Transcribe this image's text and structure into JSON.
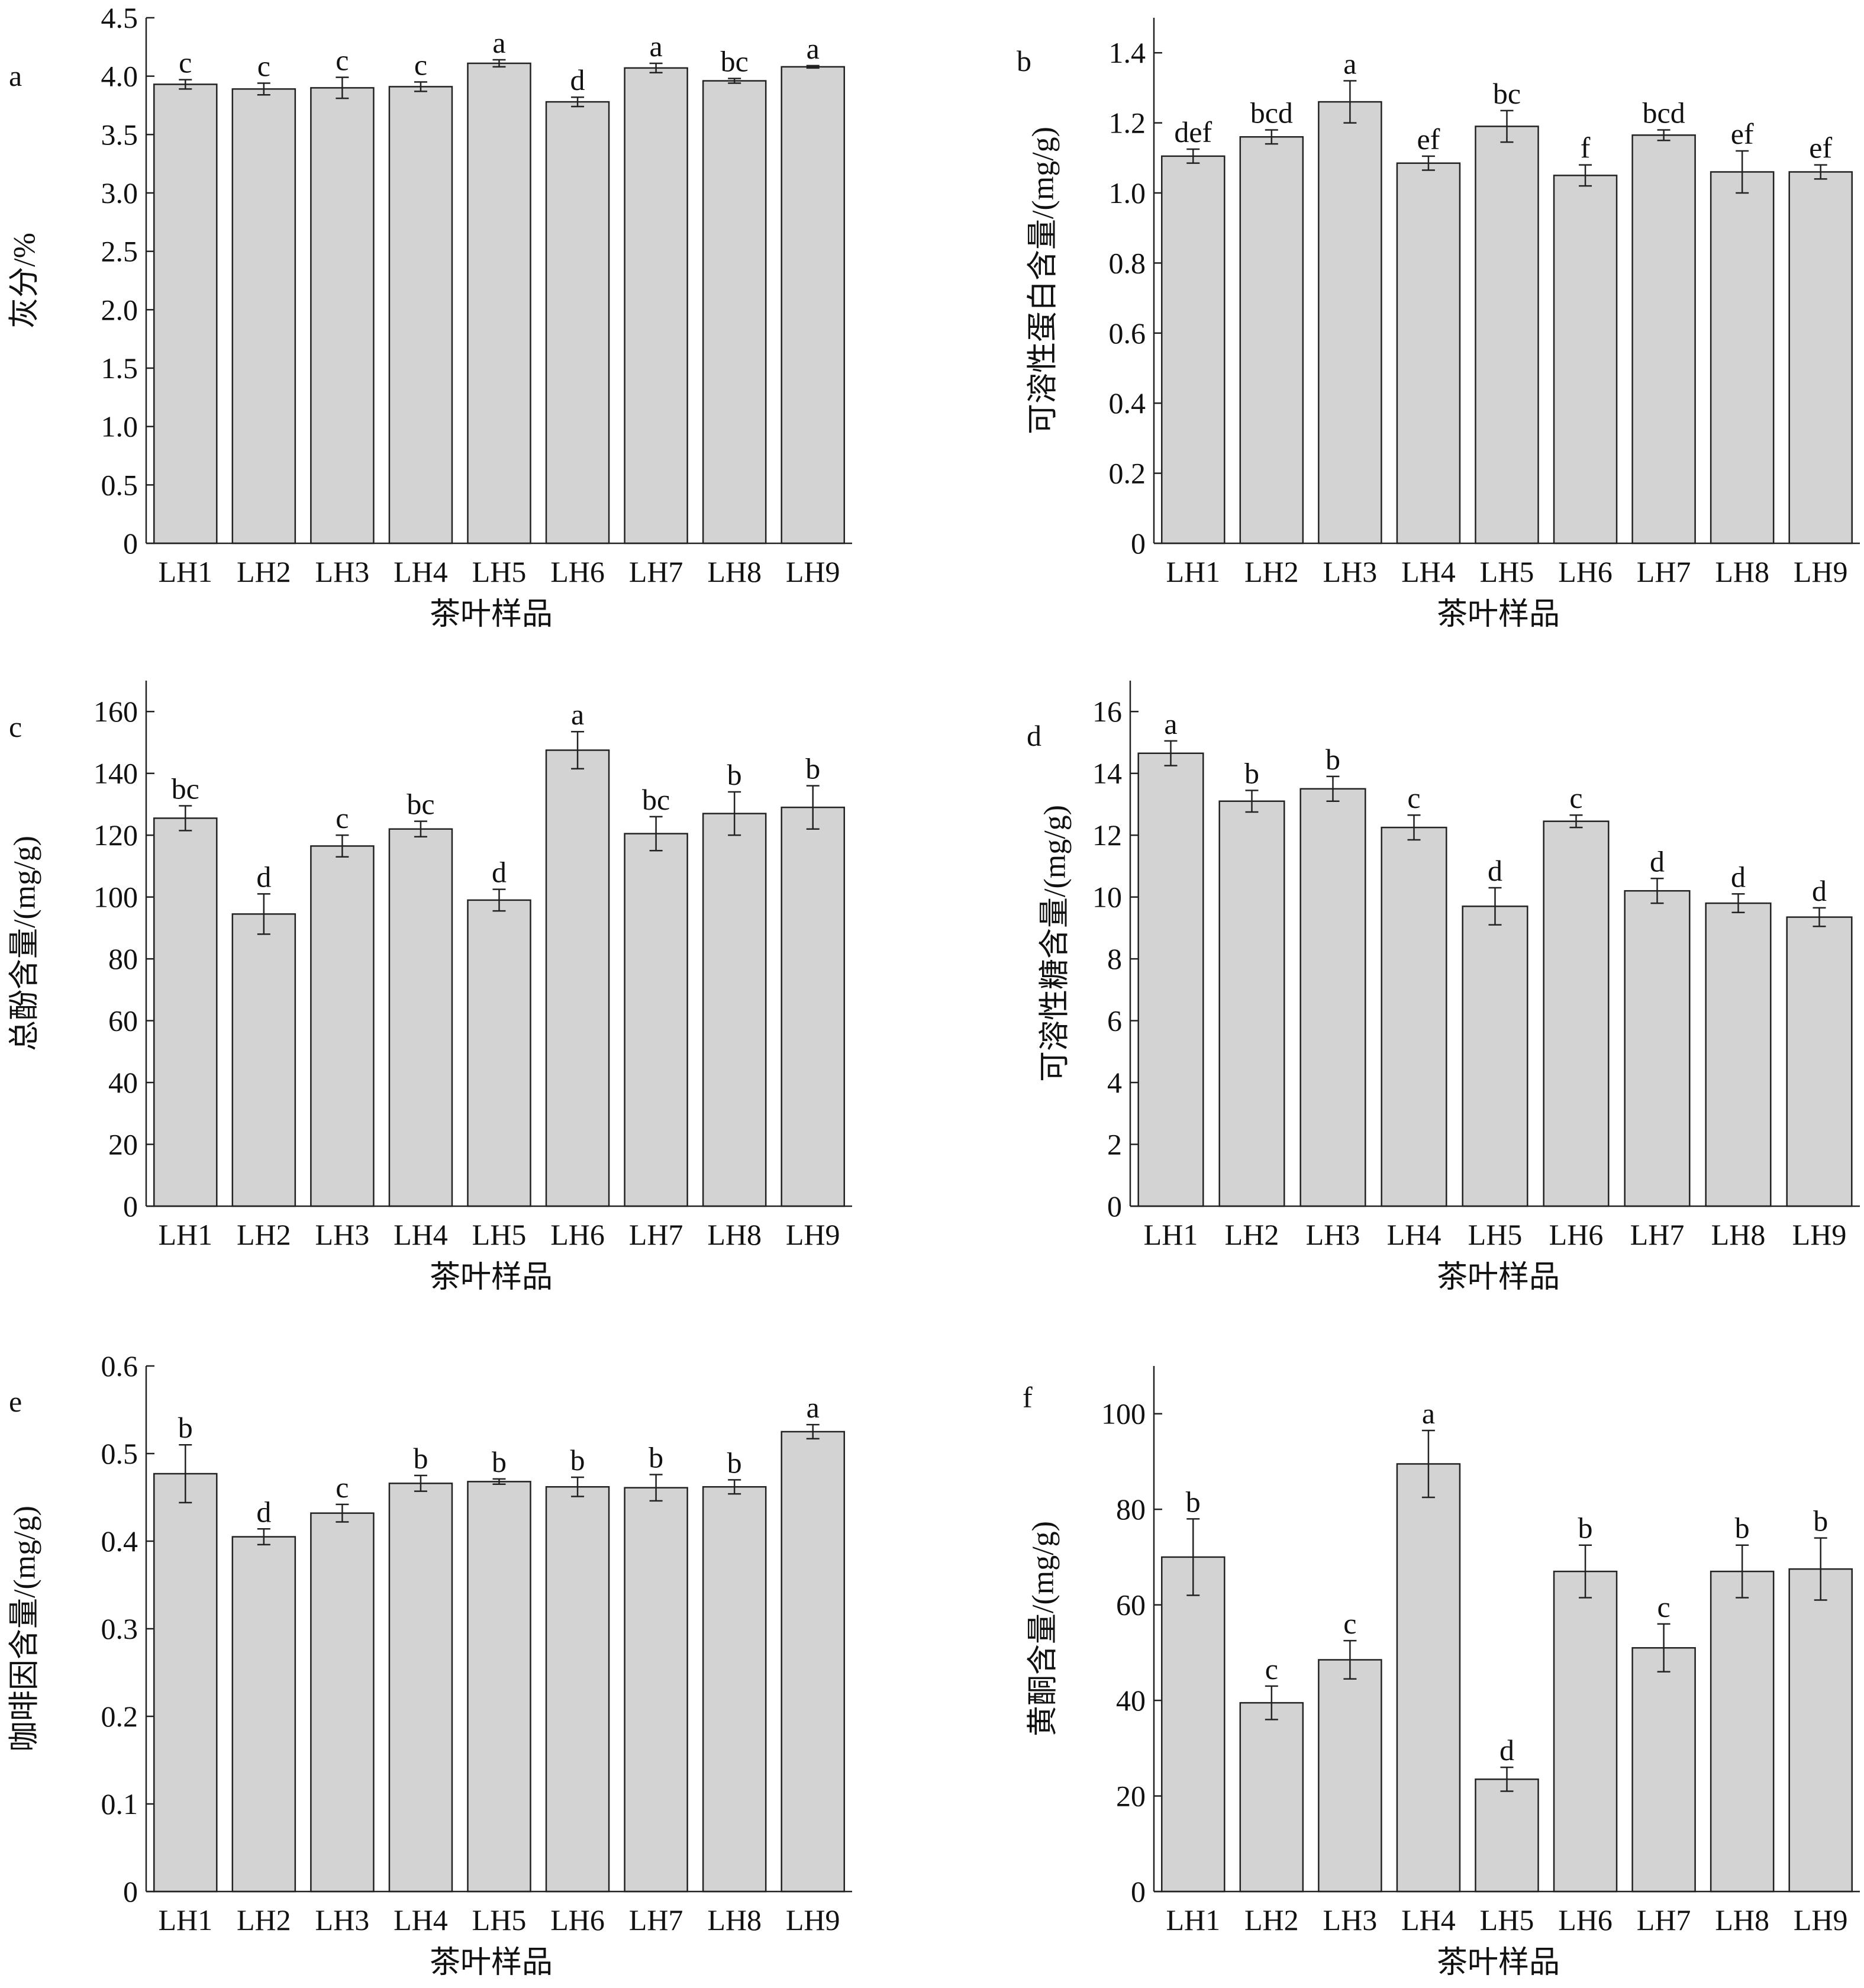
{
  "figure": {
    "bar_color": "#d3d3d3",
    "edge_color": "#222222"
  },
  "chart_data": [
    {
      "type": "bar",
      "panel": "a",
      "categories": [
        "LH1",
        "LH2",
        "LH3",
        "LH4",
        "LH5",
        "LH6",
        "LH7",
        "LH8",
        "LH9"
      ],
      "values": [
        3.93,
        3.89,
        3.9,
        3.91,
        4.11,
        3.78,
        4.07,
        3.96,
        4.08
      ],
      "errors": [
        0.04,
        0.05,
        0.09,
        0.04,
        0.03,
        0.04,
        0.04,
        0.02,
        0.01
      ],
      "letters": [
        "c",
        "c",
        "c",
        "c",
        "a",
        "d",
        "a",
        "bc",
        "a"
      ],
      "xlabel": "茶叶样品",
      "ylabel": "灰分/%",
      "ylim": [
        0,
        4.5
      ],
      "yticks": [
        0,
        0.5,
        1.0,
        1.5,
        2.0,
        2.5,
        3.0,
        3.5,
        4.0,
        4.5
      ],
      "ytick_labels": [
        "0",
        "0.5",
        "1.0",
        "1.5",
        "2.0",
        "2.5",
        "3.0",
        "3.5",
        "4.0",
        "4.5"
      ],
      "grid": false
    },
    {
      "type": "bar",
      "panel": "b",
      "categories": [
        "LH1",
        "LH2",
        "LH3",
        "LH4",
        "LH5",
        "LH6",
        "LH7",
        "LH8",
        "LH9"
      ],
      "values": [
        1.105,
        1.16,
        1.26,
        1.085,
        1.19,
        1.05,
        1.165,
        1.06,
        1.06
      ],
      "errors": [
        0.02,
        0.02,
        0.06,
        0.02,
        0.045,
        0.03,
        0.015,
        0.06,
        0.02
      ],
      "letters": [
        "def",
        "bcd",
        "a",
        "ef",
        "bc",
        "f",
        "bcd",
        "ef",
        "ef"
      ],
      "xlabel": "茶叶样品",
      "ylabel": "可溶性蛋白含量/(mg/g)",
      "ylim": [
        0,
        1.5
      ],
      "yticks": [
        0,
        0.2,
        0.4,
        0.6,
        0.8,
        1.0,
        1.2,
        1.4
      ],
      "ytick_labels": [
        "0",
        "0.2",
        "0.4",
        "0.6",
        "0.8",
        "1.0",
        "1.2",
        "1.4"
      ],
      "grid": false
    },
    {
      "type": "bar",
      "panel": "c",
      "categories": [
        "LH1",
        "LH2",
        "LH3",
        "LH4",
        "LH5",
        "LH6",
        "LH7",
        "LH8",
        "LH9"
      ],
      "values": [
        125.5,
        94.5,
        116.5,
        122,
        99,
        147.5,
        120.5,
        127,
        129
      ],
      "errors": [
        4,
        6.5,
        3.5,
        2.5,
        3.5,
        6,
        5.5,
        7,
        7
      ],
      "letters": [
        "bc",
        "d",
        "c",
        "bc",
        "d",
        "a",
        "bc",
        "b",
        "b"
      ],
      "xlabel": "茶叶样品",
      "ylabel": "总酚含量/(mg/g)",
      "ylim": [
        0,
        170
      ],
      "yticks": [
        0,
        20,
        40,
        60,
        80,
        100,
        120,
        140,
        160
      ],
      "ytick_labels": [
        "0",
        "20",
        "40",
        "60",
        "80",
        "100",
        "120",
        "140",
        "160"
      ],
      "grid": false
    },
    {
      "type": "bar",
      "panel": "d",
      "categories": [
        "LH1",
        "LH2",
        "LH3",
        "LH4",
        "LH5",
        "LH6",
        "LH7",
        "LH8",
        "LH9"
      ],
      "values": [
        14.65,
        13.1,
        13.5,
        12.25,
        9.7,
        12.45,
        10.2,
        9.8,
        9.35
      ],
      "errors": [
        0.4,
        0.35,
        0.4,
        0.4,
        0.6,
        0.2,
        0.4,
        0.3,
        0.3
      ],
      "letters": [
        "a",
        "b",
        "b",
        "c",
        "d",
        "c",
        "d",
        "d",
        "d"
      ],
      "xlabel": "茶叶样品",
      "ylabel": "可溶性糖含量/(mg/g)",
      "ylim": [
        0,
        17
      ],
      "yticks": [
        0,
        2,
        4,
        6,
        8,
        10,
        12,
        14,
        16
      ],
      "ytick_labels": [
        "0",
        "2",
        "4",
        "6",
        "8",
        "10",
        "12",
        "14",
        "16"
      ],
      "grid": false
    },
    {
      "type": "bar",
      "panel": "e",
      "categories": [
        "LH1",
        "LH2",
        "LH3",
        "LH4",
        "LH5",
        "LH6",
        "LH7",
        "LH8",
        "LH9"
      ],
      "values": [
        0.477,
        0.405,
        0.432,
        0.466,
        0.468,
        0.462,
        0.461,
        0.462,
        0.525
      ],
      "errors": [
        0.033,
        0.009,
        0.01,
        0.009,
        0.003,
        0.011,
        0.015,
        0.008,
        0.008
      ],
      "letters": [
        "b",
        "d",
        "c",
        "b",
        "b",
        "b",
        "b",
        "b",
        "a"
      ],
      "xlabel": "茶叶样品",
      "ylabel": "咖啡因含量/(mg/g)",
      "ylim": [
        0,
        0.6
      ],
      "yticks": [
        0,
        0.1,
        0.2,
        0.3,
        0.4,
        0.5,
        0.6
      ],
      "ytick_labels": [
        "0",
        "0.1",
        "0.2",
        "0.3",
        "0.4",
        "0.5",
        "0.6"
      ],
      "grid": false
    },
    {
      "type": "bar",
      "panel": "f",
      "categories": [
        "LH1",
        "LH2",
        "LH3",
        "LH4",
        "LH5",
        "LH6",
        "LH7",
        "LH8",
        "LH9"
      ],
      "values": [
        70,
        39.5,
        48.5,
        89.5,
        23.5,
        67,
        51,
        67,
        67.5
      ],
      "errors": [
        8,
        3.5,
        4,
        7,
        2.5,
        5.5,
        5,
        5.5,
        6.5
      ],
      "letters": [
        "b",
        "c",
        "c",
        "a",
        "d",
        "b",
        "c",
        "b",
        "b"
      ],
      "xlabel": "茶叶样品",
      "ylabel": "黄酮含量/(mg/g)",
      "ylim": [
        0,
        110
      ],
      "yticks": [
        0,
        20,
        40,
        60,
        80,
        100
      ],
      "ytick_labels": [
        "0",
        "20",
        "40",
        "60",
        "80",
        "100"
      ],
      "grid": false
    }
  ]
}
